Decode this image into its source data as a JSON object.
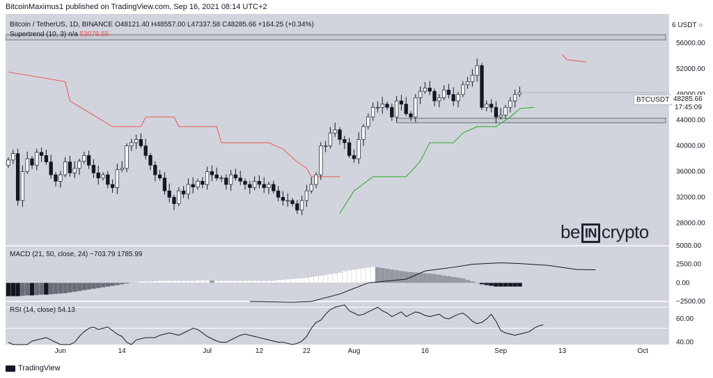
{
  "header": {
    "text": "BitcoinMaximus1 published on TradingView.com, Sep 16, 2021 08:14 UTC+2"
  },
  "legend": {
    "symbol": "Bitcoin / TetherUS, 1D, BINANCE",
    "ohlc": "O48121.40  H48557.00  L47337.58  C48285.66  +164.25 (+0.34%)",
    "supertrend_label": "Supertrend (10, 3)",
    "supertrend_na": "n/a",
    "supertrend_value": "53079.55",
    "macd_label": "MACD (21, 50, close, 24)",
    "macd_values": "−703.79  1785.99",
    "rsi_label": "RSI (14, close)",
    "rsi_value": "54.13"
  },
  "price_tag": {
    "symbol": "BTCUSDT",
    "price": "48285.66",
    "countdown": "17:45:09"
  },
  "currency": "6 USDT ○",
  "logo": {
    "left": "be",
    "box": "IN",
    "right": "crypto"
  },
  "footer": {
    "brand": "TradingView"
  },
  "colors": {
    "background": "#d1d4dc",
    "supertrend_up": "#22ab22",
    "supertrend_down": "#ef5350",
    "bull_candle": "#ffffff",
    "bear_candle": "#131722"
  },
  "chart_data": [
    {
      "type": "candlestick",
      "title": "Bitcoin / TetherUS, 1D, BINANCE",
      "x_tick_labels": [
        "Jun",
        "14",
        "Jul",
        "12",
        "22",
        "Aug",
        "16",
        "Sep",
        "13",
        "Oct"
      ],
      "y_tick_labels": [
        "56000.00",
        "52000.00",
        "48000.00",
        "44000.00",
        "40000.00",
        "36000.00",
        "32000.00",
        "28000.00"
      ],
      "ylim": [
        25000,
        60000
      ],
      "horizontal_zones": [
        [
          56500,
          57300
        ],
        [
          43600,
          44300
        ]
      ],
      "candles_close": [
        37800,
        38800,
        31500,
        36000,
        38000,
        37000,
        39000,
        38500,
        37500,
        35500,
        34500,
        35500,
        37500,
        35800,
        36500,
        37600,
        38500,
        37000,
        35800,
        35000,
        35500,
        34000,
        33500,
        36300,
        36500,
        40000,
        40500,
        41000,
        40000,
        38500,
        37000,
        35500,
        35000,
        33000,
        32000,
        31000,
        33000,
        32500,
        34000,
        33600,
        34500,
        34000,
        36000,
        35500,
        35000,
        35000,
        34000,
        35500,
        35000,
        34500,
        34000,
        33500,
        34500,
        34000,
        33500,
        34000,
        33000,
        32000,
        31500,
        31500,
        31000,
        30000,
        31500,
        33000,
        34000,
        35500,
        40000,
        40000,
        42000,
        42500,
        41000,
        40500,
        38500,
        38000,
        41000,
        43000,
        44500,
        46000,
        46000,
        46500,
        46000,
        44500,
        47000,
        46500,
        45000,
        44500,
        47500,
        48500,
        49000,
        48500,
        47000,
        47500,
        48700,
        48000,
        47000,
        48000,
        49500,
        50000,
        51000,
        52500,
        46000,
        46500,
        46000,
        44500,
        44800,
        46000,
        47000,
        48000,
        48300
      ],
      "supertrend_down": [
        [
          0,
          51500
        ],
        [
          12,
          50000
        ],
        [
          13,
          47000
        ],
        [
          22,
          43000
        ],
        [
          28,
          43000
        ],
        [
          29,
          44500
        ],
        [
          35,
          44500
        ],
        [
          36,
          43000
        ],
        [
          44,
          43000
        ],
        [
          45,
          40500
        ],
        [
          55,
          40500
        ],
        [
          58,
          39500
        ],
        [
          61,
          37500
        ],
        [
          63,
          36500
        ],
        [
          64,
          35200
        ],
        [
          70,
          35200
        ]
      ],
      "supertrend_up": [
        [
          70,
          29500
        ],
        [
          73,
          33000
        ],
        [
          77,
          35200
        ],
        [
          84,
          35200
        ],
        [
          87,
          37600
        ],
        [
          89,
          40500
        ],
        [
          94,
          40500
        ],
        [
          96,
          42000
        ],
        [
          99,
          43000
        ],
        [
          103,
          43000
        ],
        [
          106,
          44500
        ],
        [
          108,
          45800
        ],
        [
          111,
          46000
        ]
      ],
      "supertrend_latest": [
        [
          117,
          54200
        ],
        [
          118,
          53400
        ],
        [
          122,
          53079.55
        ]
      ]
    },
    {
      "type": "bar",
      "title": "MACD (21, 50, close, 24)",
      "y_tick_labels": [
        "5000.00",
        "2500.00",
        "0.00",
        "−2500.00"
      ],
      "ylim": [
        -2500,
        5000
      ],
      "histogram": [
        -1800,
        -1800,
        -1800,
        -1750,
        -1700,
        -1700,
        -1650,
        -1600,
        -1600,
        -1550,
        -1500,
        -1450,
        -1400,
        -1300,
        -1200,
        -1100,
        -1000,
        -900,
        -800,
        -700,
        -600,
        -500,
        -400,
        -300,
        -200,
        -100,
        0,
        100,
        200,
        200,
        200,
        250,
        300,
        300,
        300,
        300,
        300,
        300,
        300,
        300,
        350,
        350,
        350,
        300,
        300,
        300,
        300,
        300,
        300,
        300,
        300,
        300,
        300,
        300,
        300,
        300,
        300,
        400,
        450,
        500,
        550,
        600,
        650,
        700,
        800,
        900,
        1000,
        1100,
        1200,
        1300,
        1400,
        1600,
        1700,
        1800,
        1900,
        2000,
        2100,
        2200,
        2100,
        2000,
        1900,
        1800,
        1700,
        1600,
        1500,
        1450,
        1400,
        1350,
        1300,
        1250,
        1200,
        1100,
        1000,
        900,
        800,
        700,
        600,
        400,
        200,
        0,
        -200,
        -300,
        -400,
        -500,
        -500,
        -500,
        -500,
        -500,
        -500
      ],
      "signal_line": [
        [
          51,
          -2500
        ],
        [
          60,
          -2600
        ],
        [
          64,
          -2500
        ],
        [
          70,
          -1500
        ],
        [
          76,
          0
        ],
        [
          84,
          500
        ],
        [
          88,
          1600
        ],
        [
          94,
          2100
        ],
        [
          98,
          2500
        ],
        [
          104,
          2700
        ],
        [
          108,
          2600
        ],
        [
          114,
          2350
        ],
        [
          120,
          1800
        ],
        [
          124,
          1750
        ]
      ]
    },
    {
      "type": "line",
      "title": "RSI (14, close)",
      "y_tick_labels": [
        "60.00",
        "40.00"
      ],
      "ylim": [
        38,
        75
      ],
      "bands": [
        30,
        70
      ],
      "values": [
        40,
        38,
        37,
        36,
        38,
        41,
        42,
        43,
        44,
        42,
        40,
        38,
        36,
        38,
        40,
        45,
        49,
        52,
        53,
        51,
        52,
        53,
        50,
        47,
        45,
        40,
        38,
        42,
        43,
        44,
        44,
        44,
        46,
        47,
        48,
        47,
        46,
        48,
        50,
        52,
        51,
        48,
        45,
        43,
        41,
        40,
        40,
        42,
        44,
        46,
        47,
        46,
        45,
        44,
        43,
        42,
        41,
        40,
        40,
        39,
        38,
        39,
        41,
        45,
        52,
        57,
        59,
        64,
        68,
        70,
        71,
        72,
        67,
        65,
        63,
        64,
        66,
        68,
        70,
        67,
        65,
        62,
        64,
        66,
        62,
        64,
        66,
        65,
        63,
        62,
        63,
        64,
        61,
        60,
        62,
        64,
        65,
        62,
        58,
        56,
        57,
        60,
        64,
        58,
        50,
        48,
        47,
        46,
        47,
        48,
        49,
        52,
        54,
        55
      ],
      "x_tick_labels": [
        "Jun",
        "14",
        "Jul",
        "12",
        "22",
        "Aug",
        "16",
        "Sep",
        "13",
        "Oct"
      ]
    }
  ]
}
